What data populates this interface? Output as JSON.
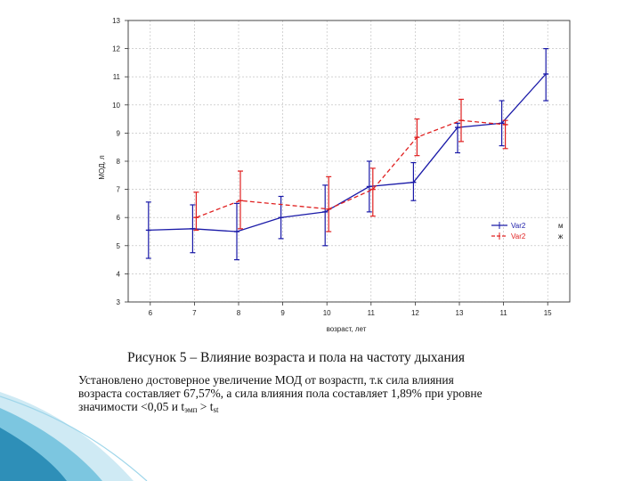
{
  "caption": "Рисунок 5 – Влияние возраста и пола на частоту дыхания",
  "body_text": {
    "line1": "Установлено достоверное увеличение МОД от возрастп, т.к сила влияния",
    "line2": "возраста составляет 67,57%, а сила влияния пола составляет 1,89% при уровне",
    "line3_prefix": "значимости <0,05 и t",
    "line3_sub1": "эмп",
    "line3_mid": " > t",
    "line3_sub2": "st"
  },
  "chart_data": {
    "type": "line",
    "xlabel": "возраст, лет",
    "ylabel": "МОД, л",
    "categories": [
      "6",
      "7",
      "8",
      "9",
      "10",
      "11",
      "12",
      "13",
      "11",
      "15"
    ],
    "ylim": [
      3,
      13
    ],
    "yticks": [
      "3",
      "4",
      "5",
      "6",
      "7",
      "8",
      "9",
      "10",
      "11",
      "12",
      "13"
    ],
    "grid": true,
    "legend_position": "right",
    "series": [
      {
        "name": "Var2",
        "legend_value": "м",
        "color": "#1a1aa8",
        "dash": "solid",
        "values": [
          5.55,
          5.6,
          5.5,
          6.0,
          6.2,
          7.1,
          7.25,
          9.2,
          9.35,
          11.1
        ],
        "lower": [
          4.55,
          4.75,
          4.5,
          5.25,
          5.0,
          6.2,
          6.6,
          8.3,
          8.55,
          10.15
        ],
        "upper": [
          6.55,
          6.45,
          6.5,
          6.75,
          7.15,
          8.0,
          7.95,
          9.35,
          10.15,
          12.0
        ]
      },
      {
        "name": "Var2",
        "legend_value": "ж",
        "color": "#e02020",
        "dash": "dashed",
        "values": [
          null,
          6.0,
          6.6,
          null,
          6.3,
          7.0,
          8.85,
          9.45,
          9.3,
          null
        ],
        "lower": [
          null,
          5.55,
          5.6,
          null,
          5.5,
          6.05,
          8.2,
          8.7,
          8.45,
          null
        ],
        "upper": [
          null,
          6.9,
          7.65,
          null,
          7.45,
          7.75,
          9.5,
          10.2,
          9.45,
          null
        ]
      }
    ]
  }
}
